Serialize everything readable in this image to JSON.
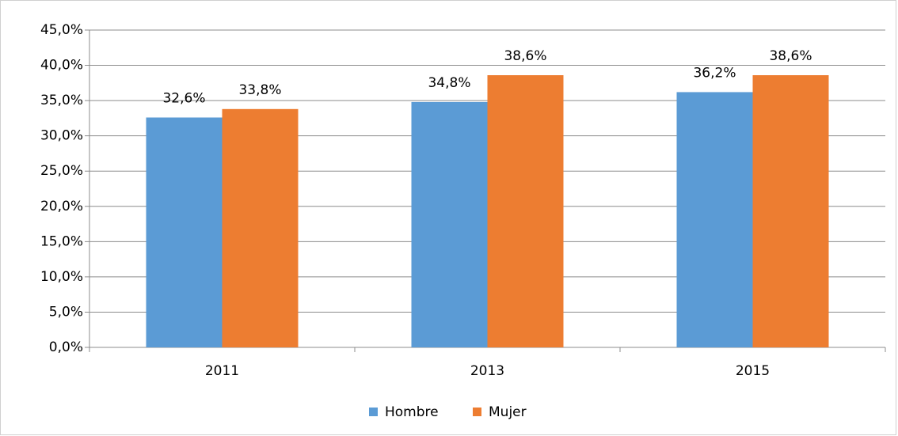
{
  "chart_data": {
    "type": "bar",
    "categories": [
      "2011",
      "2013",
      "2015"
    ],
    "series": [
      {
        "name": "Hombre",
        "color": "#5b9bd5",
        "values": [
          32.6,
          34.8,
          36.2
        ],
        "value_labels": [
          "32,6%",
          "34,8%",
          "36,2%"
        ]
      },
      {
        "name": "Mujer",
        "color": "#ed7d31",
        "values": [
          33.8,
          38.6,
          38.6
        ],
        "value_labels": [
          "33,8%",
          "38,6%",
          "38,6%"
        ]
      }
    ],
    "ylim": [
      0,
      45
    ],
    "yticks": [
      {
        "value": 0,
        "label": "0,0%"
      },
      {
        "value": 5,
        "label": "5,0%"
      },
      {
        "value": 10,
        "label": "10,0%"
      },
      {
        "value": 15,
        "label": "15,0%"
      },
      {
        "value": 20,
        "label": "20,0%"
      },
      {
        "value": 25,
        "label": "25,0%"
      },
      {
        "value": 30,
        "label": "30,0%"
      },
      {
        "value": 35,
        "label": "35,0%"
      },
      {
        "value": 40,
        "label": "40,0%"
      },
      {
        "value": 45,
        "label": "45,0%"
      }
    ],
    "grid": true,
    "legend": "bottom"
  }
}
